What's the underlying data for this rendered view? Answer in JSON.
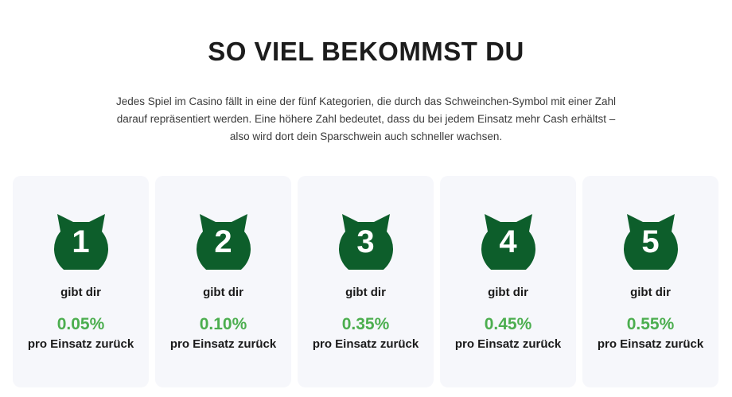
{
  "header": {
    "title": "SO VIEL BEKOMMST DU",
    "intro": "Jedes Spiel im Casino fällt in eine der fünf Kategorien, die durch das Schweinchen-Symbol mit einer Zahl darauf repräsentiert werden. Eine höhere Zahl bedeutet, dass du bei jedem Einsatz mehr Cash erhältst – also wird dort dein Sparschwein auch schneller wachsen."
  },
  "colors": {
    "pig": "#0d5e2b",
    "percent": "#4cae4f",
    "card_bg": "#f6f7fb"
  },
  "icon": "pig-icon",
  "cards": [
    {
      "number": "1",
      "label": "gibt dir",
      "percent": "0.05%",
      "suffix": "pro Einsatz zurück"
    },
    {
      "number": "2",
      "label": "gibt dir",
      "percent": "0.10%",
      "suffix": "pro Einsatz zurück"
    },
    {
      "number": "3",
      "label": "gibt dir",
      "percent": "0.35%",
      "suffix": "pro Einsatz zurück"
    },
    {
      "number": "4",
      "label": "gibt dir",
      "percent": "0.45%",
      "suffix": "pro Einsatz zurück"
    },
    {
      "number": "5",
      "label": "gibt dir",
      "percent": "0.55%",
      "suffix": "pro Einsatz zurück"
    }
  ]
}
